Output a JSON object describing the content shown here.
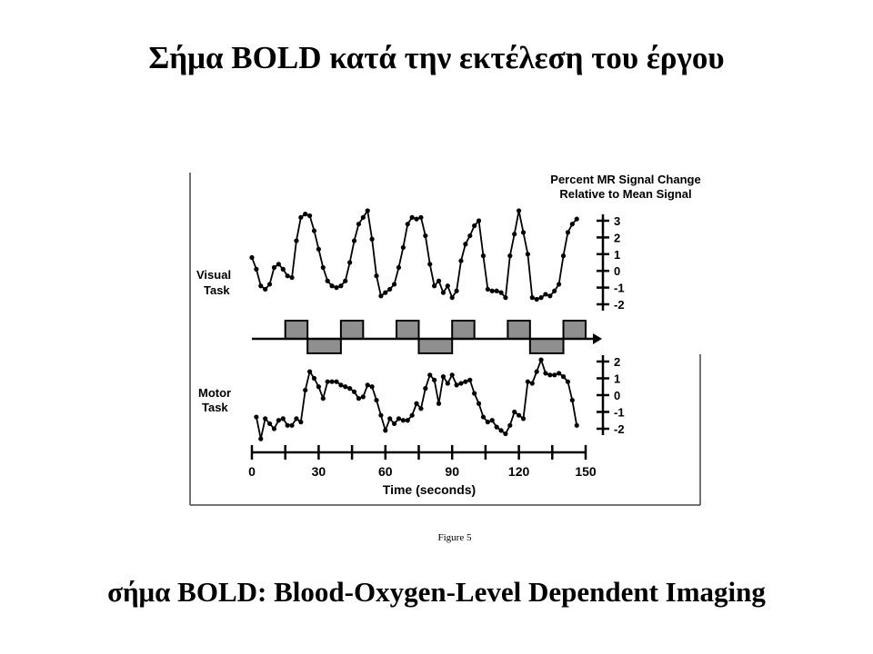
{
  "slide": {
    "title": "Σήμα BOLD κατά την εκτέλεση του έργου",
    "caption": "σήμα BOLD: Blood-Oxygen-Level Dependent Imaging"
  },
  "chart_data": {
    "type": "line",
    "header_line1": "Percent MR Signal Change",
    "header_line2": "Relative to Mean Signal",
    "xlabel": "Time (seconds)",
    "x_ticks": [
      0,
      30,
      60,
      90,
      120,
      150
    ],
    "xlim": [
      0,
      150
    ],
    "figure_label": "Figure 5",
    "colors": {
      "line": "#000000",
      "block_fill": "#8f8f8f",
      "frame": "#444444"
    },
    "block_design": [
      {
        "start": 15,
        "end": 25,
        "state": "on"
      },
      {
        "start": 25,
        "end": 40,
        "state": "off"
      },
      {
        "start": 40,
        "end": 50,
        "state": "on"
      },
      {
        "start": 65,
        "end": 75,
        "state": "on"
      },
      {
        "start": 75,
        "end": 90,
        "state": "off"
      },
      {
        "start": 90,
        "end": 100,
        "state": "on"
      },
      {
        "start": 115,
        "end": 125,
        "state": "on"
      },
      {
        "start": 125,
        "end": 140,
        "state": "off"
      },
      {
        "start": 140,
        "end": 150,
        "state": "on"
      }
    ],
    "panels": [
      {
        "label_line1": "Visual",
        "label_line2": "Task",
        "y_ticks": [
          3,
          2,
          1,
          0,
          -1,
          -2
        ],
        "ylim": [
          -2,
          3
        ],
        "x": [
          0,
          2,
          4,
          6,
          8,
          10,
          12,
          14,
          16,
          18,
          20,
          22,
          24,
          26,
          28,
          30,
          32,
          34,
          36,
          38,
          40,
          42,
          44,
          46,
          48,
          50,
          52,
          54,
          56,
          58,
          60,
          62,
          64,
          66,
          68,
          70,
          72,
          74,
          76,
          78,
          80,
          82,
          84,
          86,
          88,
          90,
          92,
          94,
          96,
          98,
          100,
          102,
          104,
          106,
          108,
          110,
          112,
          114,
          116,
          118,
          120,
          122,
          124,
          126,
          128,
          130,
          132,
          134,
          136,
          138,
          140,
          142,
          144,
          146
        ],
        "values": [
          0.8,
          0.1,
          -0.9,
          -1.1,
          -0.8,
          0.2,
          0.4,
          0.1,
          -0.3,
          -0.4,
          1.8,
          3.2,
          3.4,
          3.3,
          2.4,
          1.3,
          0.2,
          -0.6,
          -0.9,
          -1.0,
          -0.9,
          -0.6,
          0.5,
          1.8,
          2.8,
          3.2,
          3.6,
          1.9,
          -0.3,
          -1.5,
          -1.3,
          -1.1,
          -0.8,
          0.2,
          1.4,
          2.8,
          3.2,
          3.1,
          3.2,
          2.1,
          0.4,
          -0.9,
          -0.6,
          -1.3,
          -0.9,
          -1.6,
          -1.2,
          0.6,
          1.6,
          2.1,
          2.7,
          3.0,
          0.9,
          -1.1,
          -1.2,
          -1.2,
          -1.3,
          -1.6,
          0.9,
          2.2,
          3.6,
          2.3,
          1.0,
          -1.6,
          -1.7,
          -1.6,
          -1.4,
          -1.5,
          -1.2,
          -0.8,
          0.9,
          2.3,
          2.8,
          3.1
        ]
      },
      {
        "label_line1": "Motor",
        "label_line2": "Task",
        "y_ticks": [
          2,
          1,
          0,
          -1,
          -2
        ],
        "ylim": [
          -2,
          2
        ],
        "x": [
          2,
          4,
          6,
          8,
          10,
          12,
          14,
          16,
          18,
          20,
          22,
          24,
          26,
          28,
          30,
          32,
          34,
          36,
          38,
          40,
          42,
          44,
          46,
          48,
          50,
          52,
          54,
          56,
          58,
          60,
          62,
          64,
          66,
          68,
          70,
          72,
          74,
          76,
          78,
          80,
          82,
          84,
          86,
          88,
          90,
          92,
          94,
          96,
          98,
          100,
          102,
          104,
          106,
          108,
          110,
          112,
          114,
          116,
          118,
          120,
          122,
          124,
          126,
          128,
          130,
          132,
          134,
          136,
          138,
          140,
          142,
          144,
          146
        ],
        "values": [
          -1.3,
          -2.6,
          -1.4,
          -1.7,
          -2.0,
          -1.5,
          -1.4,
          -1.8,
          -1.8,
          -1.4,
          -1.6,
          0.3,
          1.4,
          1.0,
          0.5,
          -0.2,
          0.8,
          0.8,
          0.8,
          0.6,
          0.5,
          0.4,
          0.2,
          -0.2,
          -0.1,
          0.6,
          0.5,
          -0.3,
          -1.2,
          -2.1,
          -1.4,
          -1.7,
          -1.4,
          -1.5,
          -1.5,
          -1.2,
          -0.5,
          -0.8,
          0.4,
          1.2,
          0.9,
          -0.5,
          1.1,
          0.7,
          1.2,
          0.6,
          0.7,
          0.8,
          0.9,
          0.1,
          -0.5,
          -1.3,
          -1.6,
          -1.5,
          -1.9,
          -2.1,
          -2.3,
          -1.8,
          -1.0,
          -1.2,
          -1.4,
          0.8,
          0.7,
          1.4,
          2.1,
          1.3,
          1.2,
          1.2,
          1.3,
          1.1,
          0.8,
          -0.3,
          -1.8
        ]
      }
    ]
  }
}
